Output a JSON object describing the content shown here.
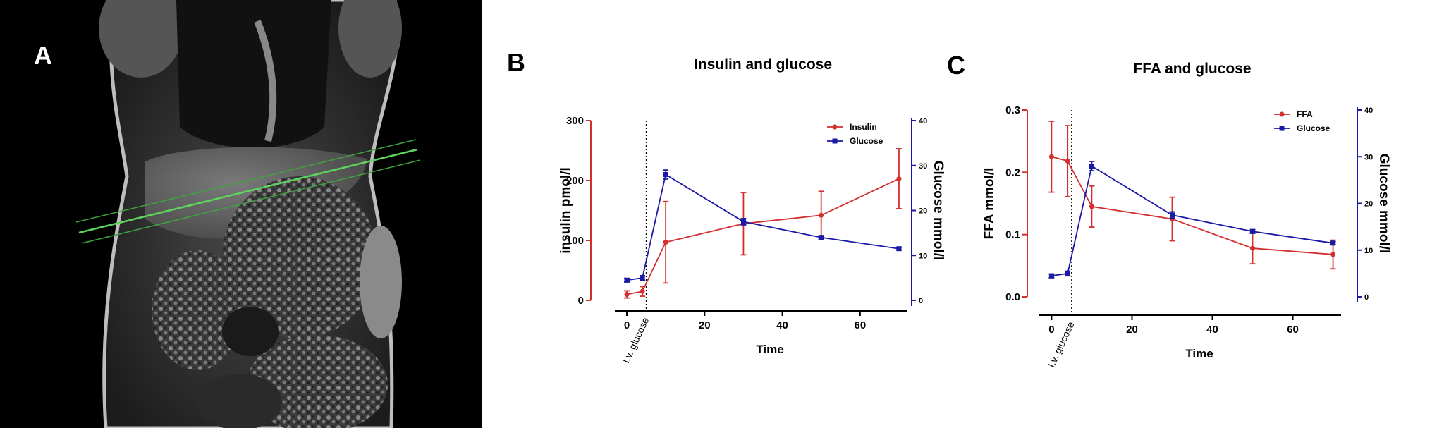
{
  "panels": {
    "a": {
      "label": "A"
    },
    "b": {
      "label": "B"
    },
    "c": {
      "label": "C"
    }
  },
  "colors": {
    "red": "#d32f2f",
    "blue": "#1a1aa6",
    "black": "#000000"
  },
  "chart_data": [
    {
      "type": "line",
      "title": "Insulin and glucose",
      "xlabel": "Time",
      "ylabel": "insulin pmol/l",
      "y2label": "Glucose mmol/l",
      "xlim": [
        -2,
        72
      ],
      "xticks": [
        0,
        20,
        40,
        60
      ],
      "ylim": [
        0,
        300
      ],
      "yticks": [
        0,
        100,
        200,
        300
      ],
      "y2lim": [
        0,
        40
      ],
      "y2ticks": [
        0,
        10,
        20,
        30,
        40
      ],
      "annotation": {
        "text": "I.v. glucose",
        "x": 5
      },
      "legend_position": "top-right",
      "series": [
        {
          "name": "Insulin",
          "axis": "left",
          "color": "#d32f2f",
          "marker": "circle",
          "x": [
            0,
            4,
            10,
            30,
            50,
            70
          ],
          "values": [
            10,
            15,
            97,
            128,
            142,
            203
          ],
          "error": [
            6,
            8,
            68,
            52,
            40,
            50
          ]
        },
        {
          "name": "Glucose",
          "axis": "right",
          "color": "#1a1aa6",
          "marker": "square",
          "x": [
            0,
            4,
            10,
            30,
            50,
            70
          ],
          "values": [
            4.5,
            5,
            28,
            17.5,
            14,
            11.5
          ],
          "error": [
            0.4,
            0.5,
            1,
            0.7,
            0.4,
            0.3
          ]
        }
      ]
    },
    {
      "type": "line",
      "title": "FFA and glucose",
      "xlabel": "Time",
      "ylabel": "FFA mmol/l",
      "y2label": "Glucose mmol/l",
      "xlim": [
        -2,
        72
      ],
      "xticks": [
        0,
        20,
        40,
        60
      ],
      "ylim": [
        0,
        0.3
      ],
      "yticks": [
        0.0,
        0.1,
        0.2,
        0.3
      ],
      "ytick_labels": [
        "0.0",
        "0.1",
        "0.2",
        "0.3"
      ],
      "y2lim": [
        0,
        40
      ],
      "y2ticks": [
        0,
        10,
        20,
        30,
        40
      ],
      "annotation": {
        "text": "I.v. glucose",
        "x": 5
      },
      "legend_position": "top-right",
      "series": [
        {
          "name": "FFA",
          "axis": "left",
          "color": "#d32f2f",
          "marker": "circle",
          "x": [
            0,
            4,
            10,
            30,
            50,
            70
          ],
          "values": [
            0.225,
            0.218,
            0.145,
            0.125,
            0.078,
            0.068
          ],
          "error": [
            0.057,
            0.057,
            0.033,
            0.035,
            0.025,
            0.023
          ]
        },
        {
          "name": "Glucose",
          "axis": "right",
          "color": "#1a1aa6",
          "marker": "square",
          "x": [
            0,
            4,
            10,
            30,
            50,
            70
          ],
          "values": [
            4.5,
            5,
            28,
            17.5,
            14,
            11.5
          ],
          "error": [
            0.4,
            0.5,
            1,
            0.7,
            0.4,
            0.3
          ]
        }
      ]
    }
  ]
}
